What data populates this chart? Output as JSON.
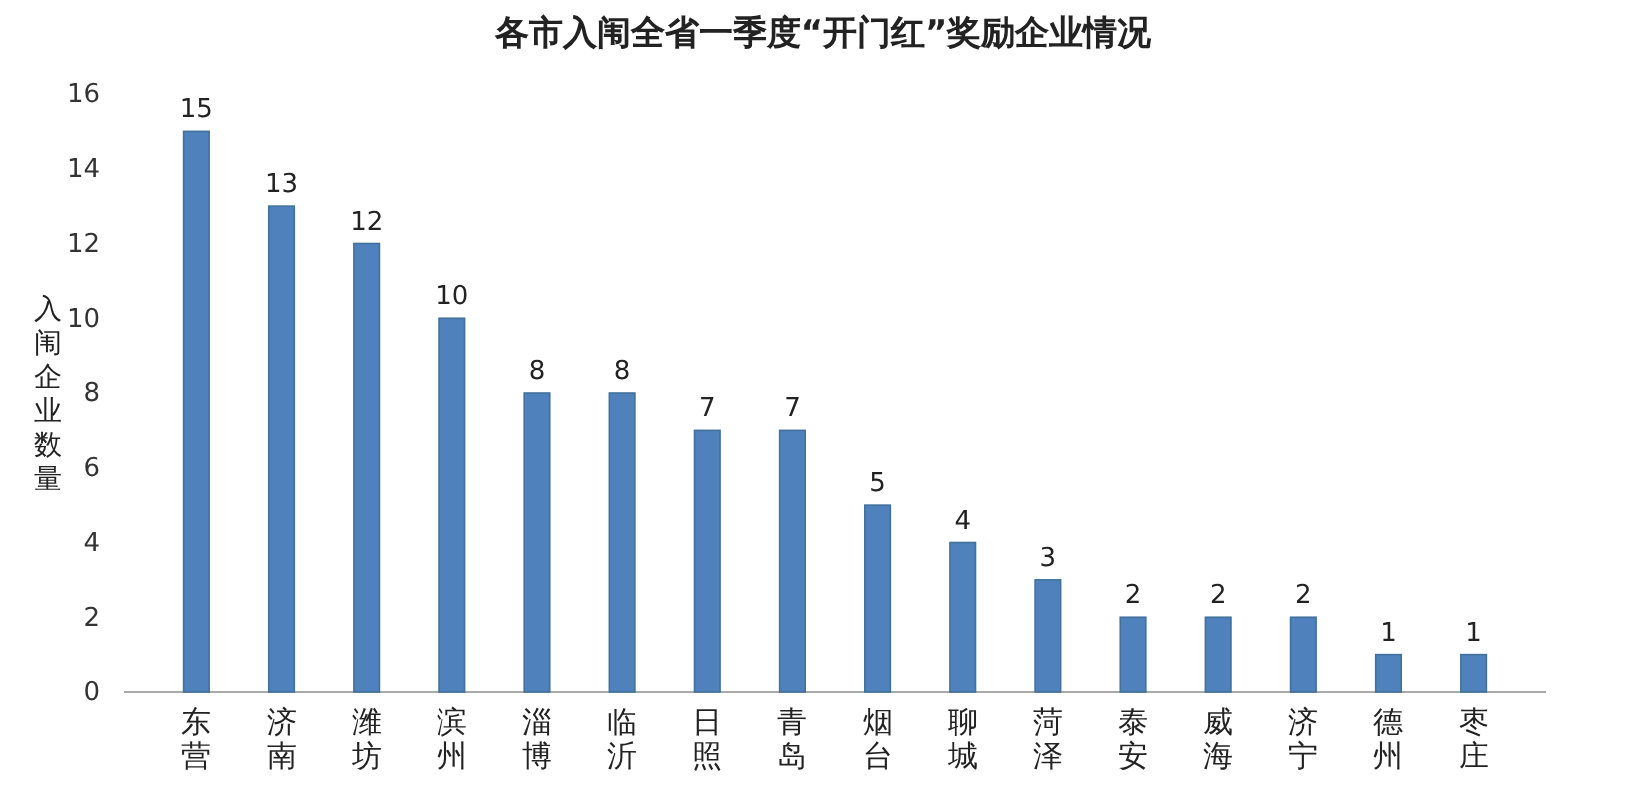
{
  "chart_data": {
    "type": "bar",
    "title": "各市入闱全省一季度“开门红”奖励企业情况",
    "ylabel": "入闱企业数量",
    "categories": [
      "东营",
      "济南",
      "潍坊",
      "滨州",
      "淄博",
      "临沂",
      "日照",
      "青岛",
      "烟台",
      "聊城",
      "菏泽",
      "泰安",
      "威海",
      "济宁",
      "德州",
      "枣庄"
    ],
    "values": [
      15,
      13,
      12,
      10,
      8,
      8,
      7,
      7,
      5,
      4,
      3,
      2,
      2,
      2,
      1,
      1
    ],
    "color": "#4f81bd",
    "ylim": [
      0,
      16
    ],
    "yticks": [
      0,
      2,
      4,
      6,
      8,
      10,
      12,
      14,
      16
    ],
    "data_labels": true
  }
}
